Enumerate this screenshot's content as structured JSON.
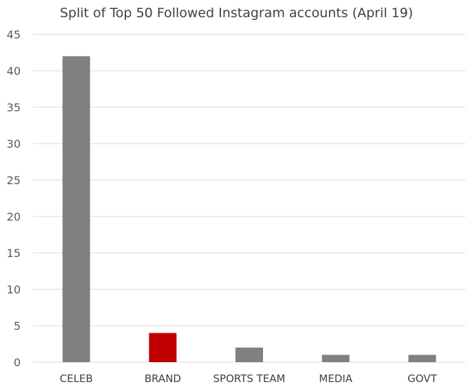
{
  "chart_data": {
    "type": "bar",
    "title": "Split of Top 50 Followed Instagram accounts (April 19)",
    "xlabel": "",
    "ylabel": "",
    "categories": [
      "CELEB",
      "BRAND",
      "SPORTS TEAM",
      "MEDIA",
      "GOVT"
    ],
    "values": [
      42,
      4,
      2,
      1,
      1
    ],
    "bar_colors": [
      "#808080",
      "#c00000",
      "#808080",
      "#808080",
      "#808080"
    ],
    "ylim": [
      0,
      45
    ],
    "yticks": [
      0,
      5,
      10,
      15,
      20,
      25,
      30,
      35,
      40,
      45
    ],
    "grid": true,
    "legend": "none"
  }
}
